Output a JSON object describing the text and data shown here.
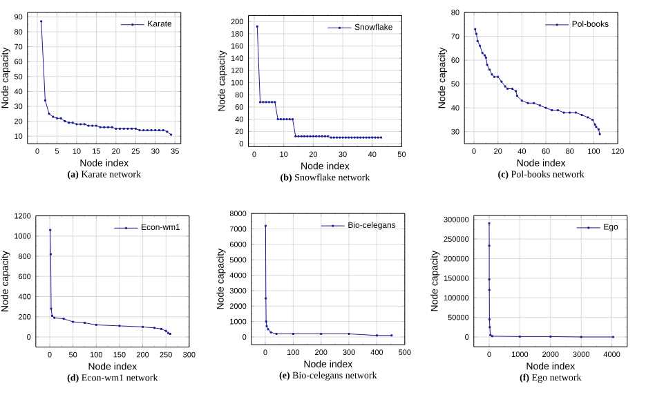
{
  "chart_data": [
    {
      "type": "line",
      "title": "**(a)** Karate network",
      "xlabel": "Node index",
      "ylabel": "Node capacity",
      "xlim": [
        -2.5,
        36.5
      ],
      "xticks": [
        0,
        5,
        10,
        15,
        20,
        25,
        30,
        35
      ],
      "ylim": [
        5,
        93
      ],
      "yticks": [
        10,
        20,
        30,
        40,
        50,
        60,
        70,
        80,
        90
      ],
      "grid": true,
      "legend": "top right",
      "marker": "square",
      "line_style": "solid",
      "series": [
        {
          "name": "Karate",
          "color": "#1c1c96",
          "x": [
            1,
            2,
            3,
            4,
            5,
            6,
            7,
            8,
            9,
            10,
            11,
            12,
            13,
            14,
            15,
            16,
            17,
            18,
            19,
            20,
            21,
            22,
            23,
            24,
            25,
            26,
            27,
            28,
            29,
            30,
            31,
            32,
            33,
            34
          ],
          "values": [
            87,
            34,
            25,
            23,
            22,
            22,
            20,
            19,
            19,
            18,
            18,
            18,
            17,
            17,
            17,
            16,
            16,
            16,
            16,
            15,
            15,
            15,
            15,
            15,
            15,
            14,
            14,
            14,
            14,
            14,
            14,
            14,
            13,
            11
          ]
        }
      ]
    },
    {
      "type": "line",
      "title": "**(b)** Snowflake network",
      "xlabel": "Node index",
      "ylabel": "Node capacity",
      "xlim": [
        -2,
        50
      ],
      "xticks": [
        0,
        10,
        20,
        30,
        40,
        50
      ],
      "ylim": [
        -5,
        210
      ],
      "yticks": [
        0,
        20,
        40,
        60,
        80,
        100,
        120,
        140,
        160,
        180,
        200
      ],
      "grid": true,
      "legend": "top right",
      "marker": "square",
      "line_style": "solid",
      "series": [
        {
          "name": "Snowflake",
          "color": "#1c1c96",
          "x": [
            1,
            2,
            3,
            4,
            5,
            6,
            7,
            8,
            9,
            10,
            11,
            12,
            13,
            14,
            15,
            16,
            17,
            18,
            19,
            20,
            21,
            22,
            23,
            24,
            25,
            26,
            27,
            28,
            29,
            30,
            31,
            32,
            33,
            34,
            35,
            36,
            37,
            38,
            39,
            40,
            41,
            42,
            43
          ],
          "values": [
            192,
            68,
            68,
            68,
            68,
            68,
            68,
            40,
            40,
            40,
            40,
            40,
            40,
            12,
            12,
            12,
            12,
            12,
            12,
            12,
            12,
            12,
            12,
            12,
            12,
            10,
            10,
            10,
            10,
            10,
            10,
            10,
            10,
            10,
            10,
            10,
            10,
            10,
            10,
            10,
            10,
            10,
            10
          ]
        }
      ]
    },
    {
      "type": "line",
      "title": "**(c)** Pol-books network",
      "xlabel": "Node index",
      "ylabel": "Node capacity",
      "xlim": [
        -8,
        120
      ],
      "xticks": [
        0,
        20,
        40,
        60,
        80,
        100,
        120
      ],
      "ylim": [
        25,
        80
      ],
      "yticks": [
        30,
        40,
        50,
        60,
        70,
        80
      ],
      "grid": true,
      "legend": "top right",
      "marker": "square",
      "line_style": "solid",
      "series": [
        {
          "name": "Pol-books",
          "color": "#1c1c96",
          "x": [
            1,
            2,
            3,
            5,
            7,
            9,
            10,
            11,
            13,
            15,
            17,
            20,
            23,
            26,
            28,
            32,
            35,
            36,
            40,
            45,
            50,
            55,
            60,
            65,
            70,
            75,
            80,
            85,
            90,
            95,
            99,
            101,
            102,
            104,
            105
          ],
          "values": [
            73,
            71,
            68,
            66,
            63,
            62,
            61,
            58,
            56,
            54,
            53,
            53,
            51,
            49,
            48,
            48,
            47,
            45,
            43,
            42,
            42,
            41,
            40,
            39,
            39,
            38,
            38,
            38,
            37,
            36,
            35,
            33,
            32,
            31,
            29
          ]
        }
      ]
    },
    {
      "type": "line",
      "title": "**(d)** Econ-wm1 network",
      "xlabel": "Node index",
      "ylabel": "Node capacity",
      "xlim": [
        -30,
        300
      ],
      "xticks": [
        0,
        50,
        100,
        150,
        200,
        250,
        300
      ],
      "ylim": [
        -100,
        1200
      ],
      "yticks": [
        0,
        200,
        400,
        600,
        800,
        1000,
        1200
      ],
      "grid": true,
      "legend": "top right",
      "marker": "square",
      "line_style": "solid",
      "series": [
        {
          "name": "Econ-wm1",
          "color": "#1c1c96",
          "x": [
            1,
            2,
            3,
            5,
            10,
            30,
            50,
            75,
            100,
            150,
            200,
            225,
            240,
            250,
            255,
            259
          ],
          "values": [
            1060,
            820,
            280,
            210,
            190,
            180,
            150,
            140,
            120,
            110,
            100,
            90,
            80,
            60,
            40,
            30
          ]
        }
      ]
    },
    {
      "type": "line",
      "title": "**(e)** Bio-celegans network",
      "xlabel": "Node index",
      "ylabel": "Node capacity",
      "xlim": [
        -50,
        500
      ],
      "xticks": [
        0,
        100,
        200,
        300,
        400,
        500
      ],
      "ylim": [
        -500,
        8000
      ],
      "yticks": [
        0,
        1000,
        2000,
        3000,
        4000,
        5000,
        6000,
        7000,
        8000
      ],
      "grid": true,
      "legend": "top right",
      "marker": "square",
      "line_style": "solid",
      "series": [
        {
          "name": "Bio-celegans",
          "color": "#1c1c96",
          "x": [
            1,
            2,
            3,
            5,
            10,
            20,
            40,
            100,
            200,
            300,
            400,
            453
          ],
          "values": [
            7200,
            2500,
            1000,
            700,
            500,
            300,
            200,
            200,
            200,
            200,
            100,
            100
          ]
        }
      ]
    },
    {
      "type": "line",
      "title": "**(f)** Ego network",
      "xlabel": "Node index",
      "ylabel": "Node capacity",
      "xlim": [
        -500,
        4500
      ],
      "xticks": [
        0,
        1000,
        2000,
        3000,
        4000
      ],
      "ylim": [
        -25000,
        310000
      ],
      "yticks": [
        0,
        50000,
        100000,
        150000,
        200000,
        250000,
        300000
      ],
      "grid": true,
      "legend": "top right",
      "marker": "square",
      "line_style": "solid",
      "series": [
        {
          "name": "Ego",
          "color": "#1c1c96",
          "x": [
            1,
            2,
            3,
            5,
            10,
            20,
            40,
            100,
            1000,
            2000,
            3000,
            4039
          ],
          "values": [
            290000,
            233000,
            147000,
            120000,
            45000,
            25000,
            5000,
            2000,
            1000,
            1000,
            0,
            0
          ]
        }
      ]
    }
  ]
}
